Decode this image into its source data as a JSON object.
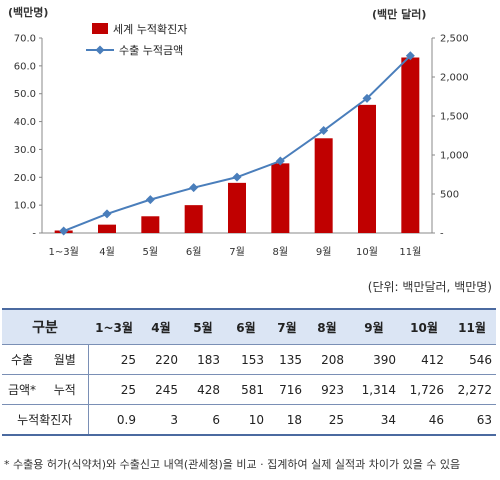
{
  "chart_data": {
    "type": "bar",
    "categories": [
      "1~3월",
      "4월",
      "5월",
      "6월",
      "7월",
      "8월",
      "9월",
      "10월",
      "11월"
    ],
    "series": [
      {
        "name": "세계 누적확진자",
        "type": "bar",
        "axis": "left",
        "color": "#c00000",
        "values": [
          0.9,
          3,
          6,
          10,
          18,
          25,
          34,
          46,
          63
        ]
      },
      {
        "name": "수출 누적금액",
        "type": "line",
        "axis": "right",
        "color": "#4a7ebb",
        "values": [
          25,
          245,
          428,
          581,
          716,
          923,
          1314,
          1726,
          2272
        ]
      }
    ],
    "ylabel_left": "(백만명)",
    "ylabel_right": "(백만 달러)",
    "ylim_left": [
      0,
      70
    ],
    "ylim_right": [
      0,
      2500
    ],
    "yticks_left": [
      "-",
      "10.0",
      "20.0",
      "30.0",
      "40.0",
      "50.0",
      "60.0",
      "70.0"
    ],
    "yticks_right": [
      "-",
      "500",
      "1,000",
      "1,500",
      "2,000",
      "2,500"
    ],
    "legend_position": "top-left",
    "grid": false
  },
  "unit_note": "(단위: 백만달러, 백만명)",
  "table": {
    "header_label": "구분",
    "columns": [
      "1~3월",
      "4월",
      "5월",
      "6월",
      "7월",
      "8월",
      "9월",
      "10월",
      "11월"
    ],
    "group_label_line1": "수출",
    "group_label_line2": "금액*",
    "monthly_label": "월별",
    "monthly": [
      "25",
      "220",
      "183",
      "153",
      "135",
      "208",
      "390",
      "412",
      "546"
    ],
    "cumulative_label": "누적",
    "cumulative": [
      "25",
      "245",
      "428",
      "581",
      "716",
      "923",
      "1,314",
      "1,726",
      "2,272"
    ],
    "cases_label": "누적확진자",
    "cases": [
      "0.9",
      "3",
      "6",
      "10",
      "18",
      "25",
      "34",
      "46",
      "63"
    ]
  },
  "footnote": "* 수출용 허가(식약처)와 수출신고 내역(관세청)을 비교 · 집계하여 실제 실적과 차이가 있을 수 있음"
}
